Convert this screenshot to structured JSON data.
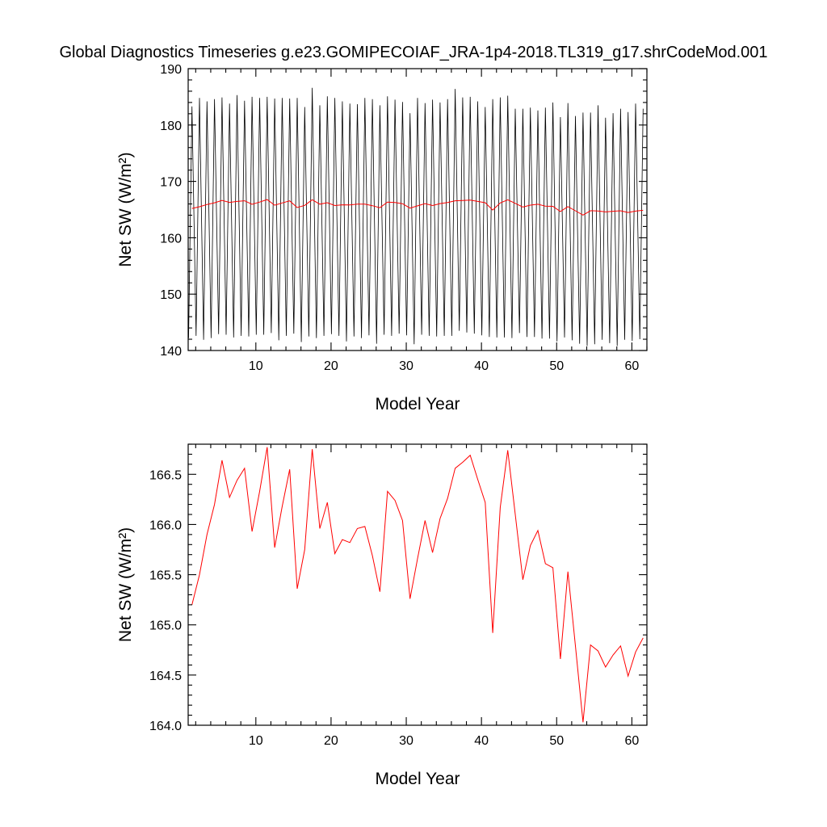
{
  "chart_data": {
    "title": "Global Diagnostics Timeseries g.e23.GOMIPECOIAF_JRA-1p4-2018.TL319_g17.shrCodeMod.001",
    "colors": {
      "monthly": "#000000",
      "annual": "#ff0000"
    },
    "panels": [
      {
        "type": "line",
        "xlabel": "Model Year",
        "ylabel": "Net SW (W/m²)",
        "xlim": [
          1,
          62
        ],
        "ylim": [
          140,
          190
        ],
        "xticks": [
          10,
          20,
          30,
          40,
          50,
          60
        ],
        "yticks": [
          140,
          150,
          160,
          170,
          180,
          190
        ],
        "ytick_labels": [
          "140",
          "150",
          "160",
          "170",
          "180",
          "190"
        ],
        "monthly_series": {
          "description_key": "seasonal cycle",
          "year_start": 1,
          "peaks": [
            183.3,
            184.8,
            184.2,
            184.6,
            184.9,
            183.8,
            185.3,
            184.3,
            185.0,
            184.8,
            185.0,
            184.7,
            184.8,
            184.7,
            184.8,
            183.2,
            186.6,
            183.5,
            185.1,
            184.8,
            184.2,
            183.8,
            183.7,
            184.8,
            184.6,
            183.5,
            185.1,
            184.5,
            184.1,
            182.1,
            184.8,
            183.9,
            184.5,
            184.0,
            184.6,
            186.4,
            184.9,
            185.0,
            184.2,
            183.2,
            184.6,
            184.9,
            185.2,
            182.9,
            182.9,
            183.1,
            182.6,
            183.1,
            184.0,
            181.4,
            183.9,
            181.6,
            182.2,
            182.2,
            183.5,
            181.3,
            182.1,
            182.9,
            182.3,
            183.8,
            182.9
          ],
          "troughs": [
            142.2,
            142.6,
            141.9,
            142.2,
            142.9,
            142.8,
            142.3,
            142.6,
            142.5,
            142.8,
            142.8,
            143.1,
            141.8,
            142.6,
            143.0,
            141.5,
            142.5,
            142.2,
            142.6,
            142.9,
            142.6,
            141.6,
            142.5,
            142.2,
            142.7,
            141.2,
            142.8,
            142.6,
            143.0,
            142.7,
            141.1,
            142.8,
            142.6,
            142.5,
            142.6,
            142.6,
            143.5,
            143.2,
            143.0,
            142.7,
            142.4,
            142.3,
            142.3,
            142.2,
            143.1,
            142.4,
            142.4,
            142.1,
            142.1,
            141.6,
            142.3,
            141.8,
            141.2,
            140.8,
            141.1,
            141.9,
            141.3,
            140.8,
            141.9,
            141.7,
            142.0
          ]
        }
      },
      {
        "type": "line",
        "xlabel": "Model Year",
        "ylabel": "Net SW (W/m²)",
        "xlim": [
          1,
          62
        ],
        "ylim": [
          164.0,
          166.8
        ],
        "xticks": [
          10,
          20,
          30,
          40,
          50,
          60
        ],
        "yticks": [
          164.0,
          164.5,
          165.0,
          165.5,
          166.0,
          166.5
        ],
        "ytick_labels": [
          "164.0",
          "164.5",
          "165.0",
          "165.5",
          "166.0",
          "166.5"
        ],
        "annual_series": {
          "x": [
            1.5,
            2.5,
            3.5,
            4.5,
            5.5,
            6.5,
            7.5,
            8.5,
            9.5,
            10.5,
            11.5,
            12.5,
            13.5,
            14.5,
            15.5,
            16.5,
            17.5,
            18.5,
            19.5,
            20.5,
            21.5,
            22.5,
            23.5,
            24.5,
            25.5,
            26.5,
            27.5,
            28.5,
            29.5,
            30.5,
            31.5,
            32.5,
            33.5,
            34.5,
            35.5,
            36.5,
            37.5,
            38.5,
            39.5,
            40.5,
            41.5,
            42.5,
            43.5,
            44.5,
            45.5,
            46.5,
            47.5,
            48.5,
            49.5,
            50.5,
            51.5,
            52.5,
            53.5,
            54.5,
            55.5,
            56.5,
            57.5,
            58.5,
            59.5,
            60.5,
            61.5
          ],
          "values": [
            165.2,
            165.5,
            165.9,
            166.2,
            166.64,
            166.27,
            166.44,
            166.56,
            165.93,
            166.33,
            166.77,
            165.77,
            166.18,
            166.55,
            165.36,
            165.75,
            166.75,
            165.96,
            166.22,
            165.71,
            165.85,
            165.82,
            165.96,
            165.98,
            165.69,
            165.33,
            166.33,
            166.24,
            166.04,
            165.26,
            165.66,
            166.04,
            165.72,
            166.06,
            166.26,
            166.56,
            166.62,
            166.69,
            166.45,
            166.22,
            164.92,
            166.17,
            166.74,
            166.1,
            165.45,
            165.79,
            165.94,
            165.61,
            165.57,
            164.66,
            165.53,
            164.79,
            164.03,
            164.8,
            164.74,
            164.58,
            164.7,
            164.79,
            164.49,
            164.73,
            164.87
          ]
        }
      }
    ]
  }
}
